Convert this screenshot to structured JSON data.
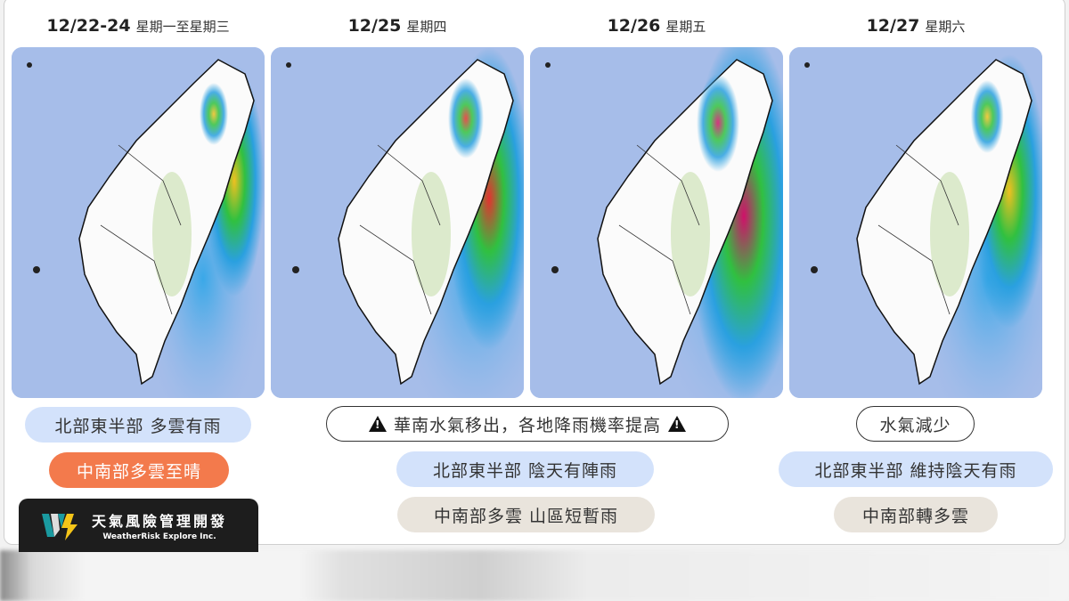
{
  "panels": [
    {
      "date": "12/22-24",
      "weekday": "星期一至星期三",
      "intensity": 1
    },
    {
      "date": "12/25",
      "weekday": "星期四",
      "intensity": 2
    },
    {
      "date": "12/26",
      "weekday": "星期五",
      "intensity": 3
    },
    {
      "date": "12/27",
      "weekday": "星期六",
      "intensity": 1.6
    }
  ],
  "forecasts": {
    "p1_north": "北部東半部 多雲有雨",
    "p1_south": "中南部多雲至晴",
    "mid_warning": "華南水氣移出，各地降雨機率提高",
    "mid_north": "北部東半部 陰天有陣雨",
    "mid_south": "中南部多雲 山區短暫雨",
    "p4_summary": "水氣減少",
    "p4_north": "北部東半部 維持陰天有雨",
    "p4_south": "中南部轉多雲"
  },
  "logo": {
    "name_zh": "天氣風險管理開發",
    "name_en": "WeatherRisk Explore Inc.",
    "icon": "weatherrisk-wl-logo"
  },
  "colors": {
    "blue_pill": "#d3e2fb",
    "orange_pill": "#f37a4c",
    "beige_pill": "#e9e4dc",
    "sea": "#9fb9ea"
  }
}
